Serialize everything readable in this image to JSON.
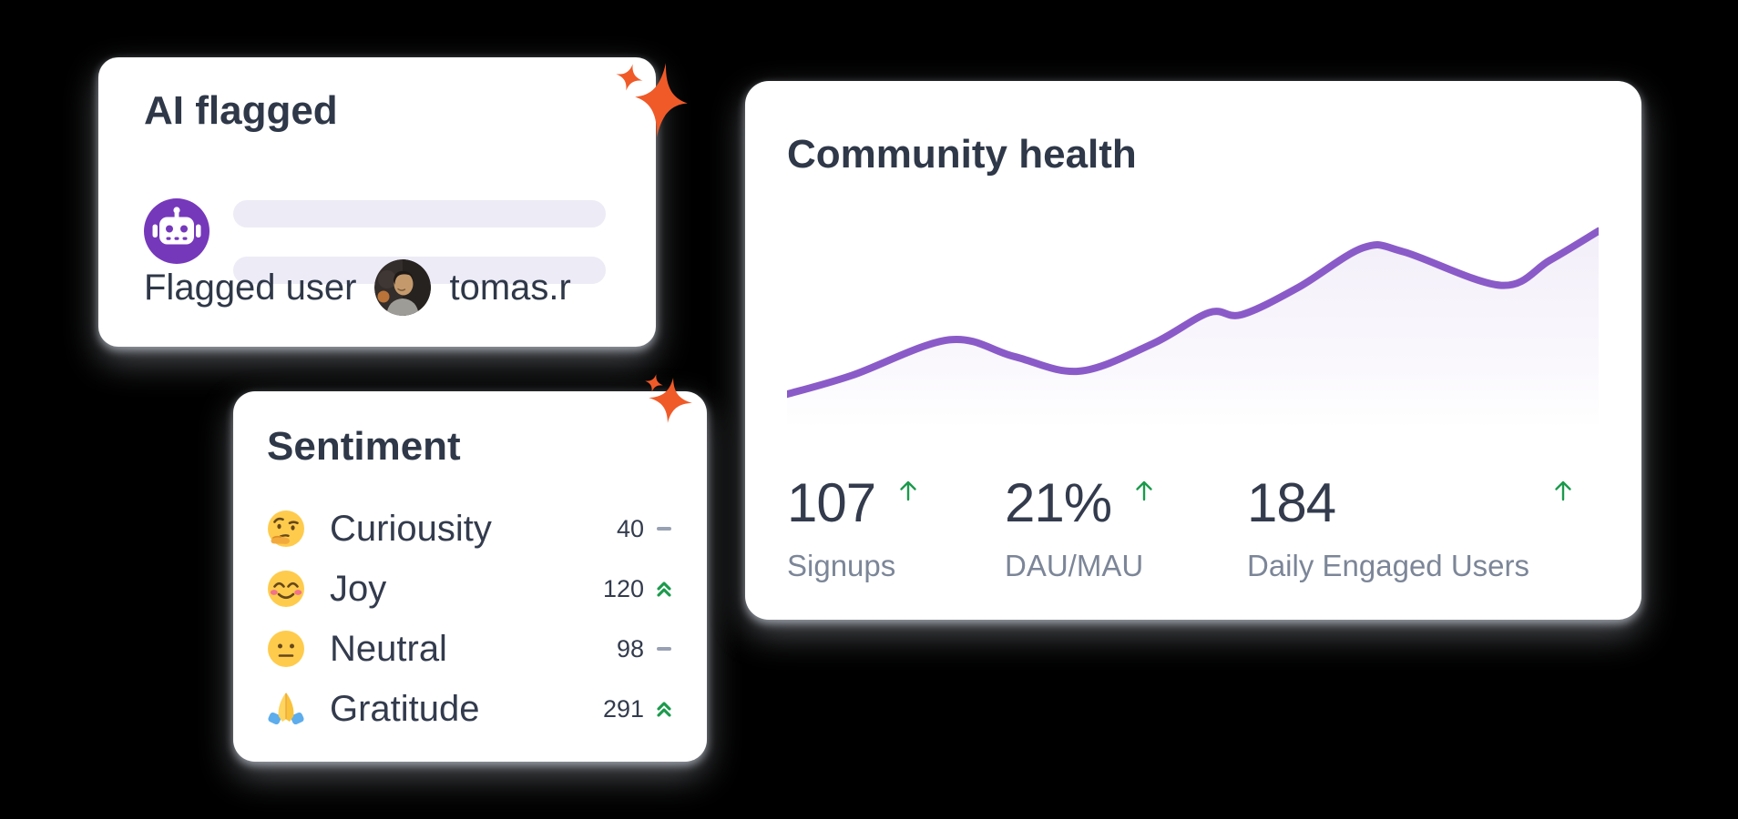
{
  "background": "#000000",
  "colors": {
    "card_bg": "#ffffff",
    "title_text": "#2f3848",
    "number_text": "#333b4d",
    "muted_text": "#7c8698",
    "dash_gray": "#98a1b3",
    "trend_green": "#1b9a4c",
    "accent_purple": "#7538bb",
    "line_purple": "#8a5bc8",
    "placeholder_bar": "#ecebf6",
    "sparkle_orange": "#f05a28"
  },
  "ai_flagged_card": {
    "title": "AI flagged",
    "icon": "robot-icon",
    "placeholder_line_count": 2,
    "flagged_label": "Flagged user",
    "flagged_username": "tomas.r",
    "avatar": "tomas-avatar"
  },
  "sentiment_card": {
    "title": "Sentiment",
    "rows": [
      {
        "emoji": "thinking-face-emoji",
        "label": "Curiousity",
        "value": "40",
        "trend": "flat"
      },
      {
        "emoji": "smiling-blush-emoji",
        "label": "Joy",
        "value": "120",
        "trend": "up"
      },
      {
        "emoji": "neutral-face-emoji",
        "label": "Neutral",
        "value": "98",
        "trend": "flat"
      },
      {
        "emoji": "praying-hands-emoji",
        "label": "Gratitude",
        "value": "291",
        "trend": "up"
      }
    ]
  },
  "community_card": {
    "title": "Community health",
    "stats": [
      {
        "value": "107",
        "label": "Signups",
        "trend": "up"
      },
      {
        "value": "21%",
        "label": "DAU/MAU",
        "trend": "up"
      },
      {
        "value": "184",
        "label": "Daily Engaged Users",
        "trend": "up"
      }
    ],
    "chart_data": {
      "type": "line",
      "title": "Community health trend",
      "xlabel": "",
      "ylabel": "",
      "x_unit": "percent_of_width",
      "y_range": [
        0,
        100
      ],
      "grid": false,
      "legend": false,
      "line_color": "#8a5bc8",
      "area_fade": true,
      "points": [
        {
          "x": 0,
          "y": 16
        },
        {
          "x": 8,
          "y": 25
        },
        {
          "x": 20,
          "y": 42
        },
        {
          "x": 28,
          "y": 34
        },
        {
          "x": 36,
          "y": 27
        },
        {
          "x": 45,
          "y": 40
        },
        {
          "x": 52,
          "y": 55
        },
        {
          "x": 56,
          "y": 54
        },
        {
          "x": 63,
          "y": 67
        },
        {
          "x": 71,
          "y": 86
        },
        {
          "x": 76,
          "y": 84
        },
        {
          "x": 88,
          "y": 68
        },
        {
          "x": 94,
          "y": 80
        },
        {
          "x": 100,
          "y": 94
        }
      ]
    }
  }
}
